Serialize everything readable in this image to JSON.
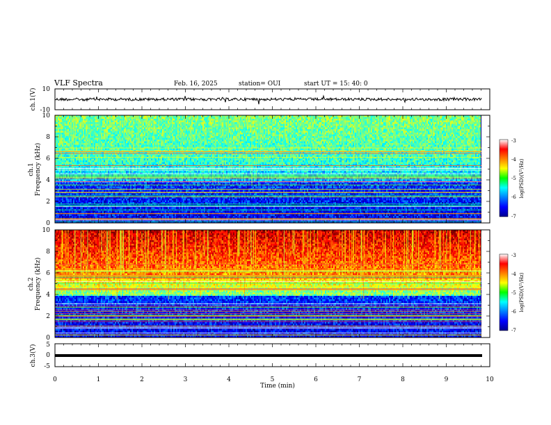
{
  "header": {
    "title": "VLF Spectra",
    "date": "Feb. 16, 2025",
    "station": "station= OUI",
    "start": "start  UT  =   15: 40: 0"
  },
  "chart_data": [
    {
      "type": "line",
      "name": "ch1-waveform",
      "ylabel": "ch.1(V)",
      "ylim": [
        -10,
        10
      ],
      "yticks": [
        "10",
        "-10"
      ],
      "xlim": [
        0,
        10
      ],
      "baseline": 0
    },
    {
      "type": "heatmap",
      "name": "ch1-spectrogram",
      "ylabel_top": "ch.1",
      "ylabel": "Frequency (kHz)",
      "ylim": [
        0,
        10
      ],
      "yticks": [
        "0",
        "2",
        "4",
        "6",
        "8",
        "10"
      ],
      "xlim": [
        0,
        10
      ],
      "colorbar": {
        "label": "log(PSD)(V²/Hz)",
        "range": [
          -7,
          -3
        ],
        "ticks": [
          "-3",
          "-4",
          "-5",
          "-6",
          "-7"
        ]
      }
    },
    {
      "type": "heatmap",
      "name": "ch2-spectrogram",
      "ylabel_top": "ch.2",
      "ylabel": "Frequency (kHz)",
      "ylim": [
        0,
        10
      ],
      "yticks": [
        "0",
        "2",
        "4",
        "6",
        "8",
        "10"
      ],
      "xlim": [
        0,
        10
      ],
      "colorbar": {
        "label": "log(PSD)(V²/Hz)",
        "range": [
          -7,
          -3
        ],
        "ticks": [
          "-3",
          "-4",
          "-5",
          "-6",
          "-7"
        ]
      }
    },
    {
      "type": "line",
      "name": "ch3-waveform",
      "ylabel": "ch.3(V)",
      "ylim": [
        -5,
        5
      ],
      "yticks": [
        "5",
        "0",
        "-5"
      ],
      "xlim": [
        0,
        10
      ],
      "baseline": -0.5
    }
  ],
  "xaxis": {
    "label": "Time (min)",
    "ticks": [
      "0",
      "1",
      "2",
      "3",
      "4",
      "5",
      "6",
      "7",
      "8",
      "9",
      "10"
    ]
  }
}
